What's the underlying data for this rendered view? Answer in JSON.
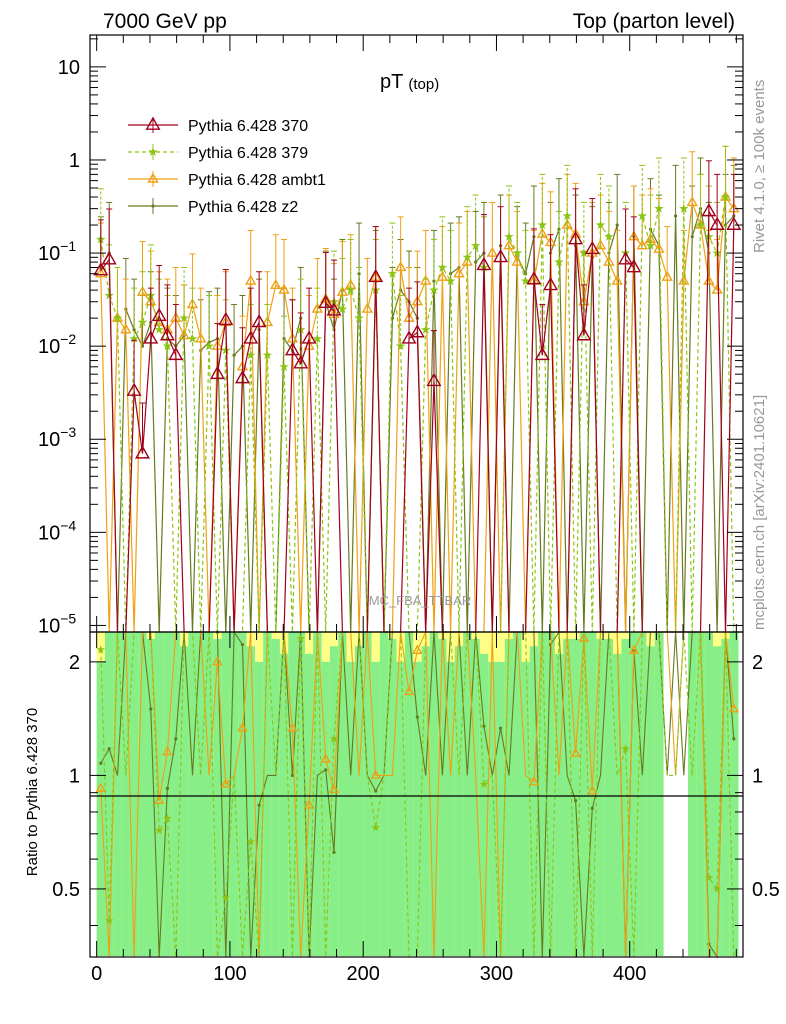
{
  "header": {
    "left": "7000 GeV pp",
    "right": "Top (parton level)"
  },
  "side_labels": {
    "rivet": "Rivet 4.1.0, ≥ 100k events",
    "mcplots": "mcplots.cern.ch [arXiv:2401.10621]"
  },
  "watermark": "MC_FBA_TTBAR",
  "chart_data": {
    "type": "line",
    "title": "pT",
    "title_sub": "(top)",
    "xlabel": "",
    "ylabel": "",
    "ratio_ylabel": "Ratio to Pythia 6.428 370",
    "xlim": [
      -5,
      485
    ],
    "ylim": [
      8.5e-06,
      22
    ],
    "yscale": "log",
    "ratio_ylim": [
      0.33,
      2.4
    ],
    "ratio_yscale": "log",
    "x_ticks": [
      "0",
      "100",
      "200",
      "300",
      "400"
    ],
    "y_ticks": [
      "10",
      "1",
      "10^-1",
      "10^-2",
      "10^-3",
      "10^-4",
      "10^-5"
    ],
    "ratio_ticks": [
      "2",
      "1",
      "0.5"
    ],
    "legend_position": "top-left",
    "bin_width": 6.25,
    "x": [
      3.1,
      9.4,
      15.6,
      21.9,
      28.1,
      34.4,
      40.6,
      46.9,
      53.1,
      59.4,
      65.6,
      71.9,
      78.1,
      84.4,
      90.6,
      96.9,
      103.1,
      109.4,
      115.6,
      121.9,
      128.1,
      134.4,
      140.6,
      146.9,
      153.1,
      159.4,
      165.6,
      171.9,
      178.1,
      184.4,
      190.6,
      196.9,
      203.1,
      209.4,
      215.6,
      221.9,
      228.1,
      234.4,
      240.6,
      246.9,
      253.1,
      259.4,
      265.6,
      271.9,
      278.1,
      284.4,
      290.6,
      296.9,
      303.1,
      309.4,
      315.6,
      321.9,
      328.1,
      334.4,
      340.6,
      346.9,
      353.1,
      359.4,
      365.6,
      371.9,
      378.1,
      384.4,
      390.6,
      396.9,
      403.1,
      409.4,
      415.6,
      421.9,
      428.1,
      434.4,
      440.6,
      446.9,
      453.1,
      459.4,
      465.6,
      471.9,
      478.1
    ],
    "series": [
      {
        "name": "Pythia 6.428 370",
        "color": "#a0001e",
        "marker": "triangle-open",
        "dash": "solid",
        "values": [
          0.065,
          0.085,
          0,
          0,
          0.0033,
          0.0007,
          0.012,
          0.021,
          0.013,
          0.008,
          0,
          0,
          0,
          0,
          0.005,
          0.019,
          0,
          0.0045,
          0.012,
          0.018,
          0,
          0,
          0,
          0.009,
          0.0065,
          0.012,
          0,
          0.029,
          0.024,
          0,
          0,
          0,
          0,
          0.055,
          0,
          0,
          0,
          0.012,
          0.014,
          0,
          0.0042,
          0,
          0,
          0,
          0,
          0,
          0.074,
          0,
          0.09,
          0,
          0,
          0,
          0.052,
          0.008,
          0.045,
          0,
          0,
          0.14,
          0.013,
          0.11,
          0,
          0,
          0,
          0.085,
          0.07,
          0,
          0,
          0,
          0,
          0,
          0,
          0,
          0,
          0.28,
          0.2,
          0,
          0.2
        ]
      },
      {
        "name": "Pythia 6.428 379",
        "color": "#8cc414",
        "marker": "star",
        "dash": "dashed",
        "values": [
          0.14,
          0.035,
          0.02,
          0,
          0.012,
          0.018,
          0.035,
          0.015,
          0.01,
          0,
          0.02,
          0.012,
          0,
          0.01,
          0,
          0.009,
          0,
          0,
          0.008,
          0,
          0.008,
          0,
          0.006,
          0,
          0.015,
          0,
          0.012,
          0,
          0.03,
          0.025,
          0.04,
          0.02,
          0,
          0.04,
          0,
          0.06,
          0.01,
          0,
          0,
          0.015,
          0.04,
          0.07,
          0.05,
          0,
          0.09,
          0.12,
          0.07,
          0,
          0,
          0.15,
          0.1,
          0.05,
          0,
          0.2,
          0,
          0.08,
          0.25,
          0,
          0.1,
          0,
          0.2,
          0.15,
          0,
          0.1,
          0,
          0.25,
          0.12,
          0.3,
          0,
          0,
          0.3,
          0,
          0.2,
          0.15,
          0.1,
          0.4,
          0
        ]
      },
      {
        "name": "Pythia 6.428 ambt1",
        "color": "#f0a014",
        "marker": "triangle-open",
        "dash": "solid",
        "values": [
          0.06,
          0,
          0.02,
          0.015,
          0,
          0.038,
          0.03,
          0.018,
          0.015,
          0.02,
          0.013,
          0.028,
          0.012,
          0,
          0.01,
          0.018,
          0,
          0.006,
          0.05,
          0,
          0.018,
          0.045,
          0.04,
          0.012,
          0,
          0.01,
          0.025,
          0.032,
          0.022,
          0.038,
          0.045,
          0,
          0.025,
          0.055,
          0,
          0,
          0.07,
          0.02,
          0.03,
          0.05,
          0,
          0.055,
          0,
          0.06,
          0.08,
          0,
          0,
          0.1,
          0,
          0.12,
          0.08,
          0,
          0.05,
          0.16,
          0.13,
          0,
          0.2,
          0.16,
          0.03,
          0.1,
          0.12,
          0.08,
          0.05,
          0,
          0.15,
          0.12,
          0.14,
          0.11,
          0.055,
          0,
          0.05,
          0.35,
          0.2,
          0.05,
          0.04,
          0.4,
          0.3
        ]
      },
      {
        "name": "Pythia 6.428 z2",
        "color": "#667a1e",
        "marker": "dot",
        "dash": "solid",
        "values": [
          0.07,
          0.1,
          0,
          0.025,
          0.015,
          0.01,
          0.018,
          0,
          0.012,
          0.01,
          0.013,
          0,
          0.009,
          0.011,
          0.012,
          0,
          0.008,
          0.01,
          0,
          0.015,
          0,
          0,
          0.012,
          0.009,
          0.02,
          0,
          0,
          0.03,
          0.015,
          0.04,
          0,
          0.06,
          0,
          0.05,
          0,
          0.02,
          0.04,
          0.03,
          0.02,
          0,
          0.05,
          0,
          0.06,
          0.07,
          0,
          0.08,
          0.1,
          0,
          0.12,
          0,
          0.09,
          0.06,
          0.15,
          0,
          0.1,
          0.18,
          0,
          0.12,
          0,
          0.09,
          0,
          0.1,
          0.2,
          0,
          0.15,
          0,
          0.18,
          0.12,
          0,
          0.25,
          0,
          0.15,
          0.3,
          0.1,
          0,
          0.2,
          0.25
        ]
      }
    ],
    "ratio_band": {
      "green": [
        2.0,
        2.5,
        2.5,
        2.5,
        2.4,
        2.5,
        2.3,
        2.4,
        2.5,
        2.5,
        2.2,
        2.5,
        2.5,
        2.5,
        2.3,
        2.4,
        2.5,
        2.5,
        2.2,
        2.0,
        2.5,
        2.3,
        2.1,
        2.5,
        2.4,
        2.1,
        2.5,
        2.0,
        2.2,
        2.5,
        2.0,
        2.2,
        2.4,
        2.0,
        2.5,
        2.3,
        2.0,
        2.4,
        2.0,
        2.2,
        2.5,
        2.3,
        2.0,
        2.2,
        2.5,
        2.3,
        2.1,
        2.0,
        2.0,
        2.3,
        2.4,
        2.0,
        2.2,
        2.4,
        2.5,
        2.1,
        2.3,
        2.3,
        2.5,
        2.4,
        2.3,
        2.3,
        2.1,
        2.3,
        2.4,
        2.5,
        2.2,
        2.5,
        2.5,
        2.5,
        2.5,
        2.5,
        2.5,
        2.5,
        2.2,
        2.3,
        2.4
      ],
      "yellow": [
        2.5,
        2.5,
        2.5,
        2.5,
        2.5,
        2.5,
        2.5,
        2.5,
        2.5,
        2.5,
        2.5,
        2.5,
        2.5,
        2.5,
        2.5,
        2.5,
        2.5,
        2.5,
        2.5,
        2.5,
        2.5,
        2.5,
        2.5,
        2.5,
        2.5,
        2.5,
        2.5,
        2.5,
        2.5,
        2.5,
        2.5,
        2.5,
        2.5,
        2.5,
        2.5,
        2.5,
        2.5,
        2.5,
        2.5,
        2.5,
        2.5,
        2.5,
        2.5,
        2.5,
        2.5,
        2.5,
        2.5,
        2.5,
        2.5,
        2.5,
        2.5,
        2.5,
        2.5,
        2.5,
        2.5,
        2.5,
        2.5,
        2.5,
        2.5,
        2.5,
        2.5,
        2.5,
        2.5,
        2.5,
        2.5,
        2.5,
        2.5,
        2.5,
        2.5,
        2.5,
        2.5,
        2.5,
        2.5,
        2.5,
        2.5,
        2.5,
        2.5
      ],
      "gaps": [
        428.1,
        434.4,
        440.6
      ]
    }
  }
}
